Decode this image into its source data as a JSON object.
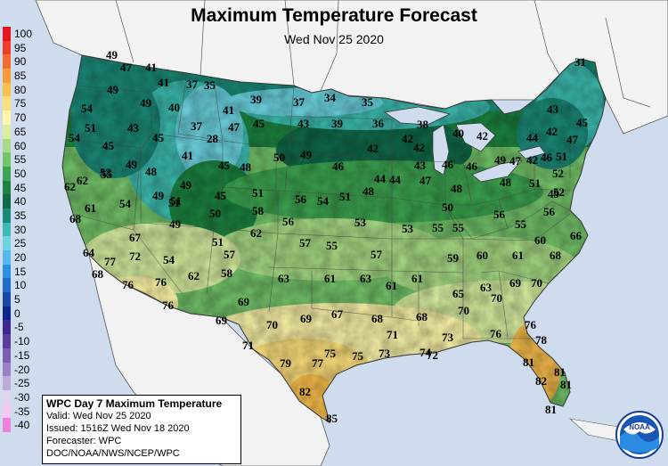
{
  "title": "Maximum Temperature Forecast",
  "subtitle": "Wed Nov 25 2020",
  "legend": [
    {
      "label": "100",
      "color": "#e8141c"
    },
    {
      "label": "95",
      "color": "#f03c28"
    },
    {
      "label": "90",
      "color": "#f56a2e"
    },
    {
      "label": "85",
      "color": "#f99a3a"
    },
    {
      "label": "80",
      "color": "#fbc04c"
    },
    {
      "label": "75",
      "color": "#fde07c"
    },
    {
      "label": "70",
      "color": "#fdf5a8"
    },
    {
      "label": "65",
      "color": "#d8efa0"
    },
    {
      "label": "60",
      "color": "#a8dc84"
    },
    {
      "label": "55",
      "color": "#74c46a"
    },
    {
      "label": "50",
      "color": "#3ca450"
    },
    {
      "label": "45",
      "color": "#1c8440"
    },
    {
      "label": "40",
      "color": "#106a48"
    },
    {
      "label": "35",
      "color": "#1a8a78"
    },
    {
      "label": "30",
      "color": "#3cbcb0"
    },
    {
      "label": "25",
      "color": "#6cd4e0"
    },
    {
      "label": "20",
      "color": "#56b8ec"
    },
    {
      "label": "15",
      "color": "#2c90e0"
    },
    {
      "label": "10",
      "color": "#1e6cc8"
    },
    {
      "label": "5",
      "color": "#1a48a8"
    },
    {
      "label": "0",
      "color": "#10248c"
    },
    {
      "label": "-5",
      "color": "#3c2890"
    },
    {
      "label": "-10",
      "color": "#5a3c9c"
    },
    {
      "label": "-15",
      "color": "#7a5cb0"
    },
    {
      "label": "-20",
      "color": "#9a80c4"
    },
    {
      "label": "-25",
      "color": "#bcaad8"
    },
    {
      "label": "-30",
      "color": "#e0d4ee"
    },
    {
      "label": "-35",
      "color": "#f4c8f0"
    },
    {
      "label": "-40",
      "color": "#f080e0"
    }
  ],
  "temperatures": [
    {
      "v": "49"
    },
    {
      "v": "47"
    },
    {
      "v": "41"
    },
    {
      "v": "49"
    },
    {
      "v": "41"
    },
    {
      "v": "37"
    },
    {
      "v": "35"
    },
    {
      "v": "39"
    },
    {
      "v": "37"
    },
    {
      "v": "34"
    },
    {
      "v": "35"
    },
    {
      "v": "31"
    },
    {
      "v": "54"
    },
    {
      "v": "49"
    },
    {
      "v": "40"
    },
    {
      "v": "41"
    },
    {
      "v": "45"
    },
    {
      "v": "43"
    },
    {
      "v": "39"
    },
    {
      "v": "36"
    },
    {
      "v": "38"
    },
    {
      "v": "40"
    },
    {
      "v": "43"
    },
    {
      "v": "54"
    },
    {
      "v": "51"
    },
    {
      "v": "43"
    },
    {
      "v": "45"
    },
    {
      "v": "37"
    },
    {
      "v": "28"
    },
    {
      "v": "47"
    },
    {
      "v": "42"
    },
    {
      "v": "42"
    },
    {
      "v": "44"
    },
    {
      "v": "42"
    },
    {
      "v": "45"
    },
    {
      "v": "45"
    },
    {
      "v": "41"
    },
    {
      "v": "42"
    },
    {
      "v": "42"
    },
    {
      "v": "47"
    },
    {
      "v": "49"
    },
    {
      "v": "48"
    },
    {
      "v": "45"
    },
    {
      "v": "48"
    },
    {
      "v": "50"
    },
    {
      "v": "49"
    },
    {
      "v": "46"
    },
    {
      "v": "44"
    },
    {
      "v": "43"
    },
    {
      "v": "46"
    },
    {
      "v": "46"
    },
    {
      "v": "49"
    },
    {
      "v": "47"
    },
    {
      "v": "42"
    },
    {
      "v": "46"
    },
    {
      "v": "51"
    },
    {
      "v": "53"
    },
    {
      "v": "55"
    },
    {
      "v": "44"
    },
    {
      "v": "47"
    },
    {
      "v": "48"
    },
    {
      "v": "52"
    },
    {
      "v": "62"
    },
    {
      "v": "62"
    },
    {
      "v": "49"
    },
    {
      "v": "49"
    },
    {
      "v": "51"
    },
    {
      "v": "45"
    },
    {
      "v": "51"
    },
    {
      "v": "56"
    },
    {
      "v": "54"
    },
    {
      "v": "51"
    },
    {
      "v": "48"
    },
    {
      "v": "48"
    },
    {
      "v": "51"
    },
    {
      "v": "49"
    },
    {
      "v": "52"
    },
    {
      "v": "61"
    },
    {
      "v": "54"
    },
    {
      "v": "51"
    },
    {
      "v": "50"
    },
    {
      "v": "58"
    },
    {
      "v": "50"
    },
    {
      "v": "56"
    },
    {
      "v": "68"
    },
    {
      "v": "49"
    },
    {
      "v": "56"
    },
    {
      "v": "53"
    },
    {
      "v": "53"
    },
    {
      "v": "55"
    },
    {
      "v": "55"
    },
    {
      "v": "55"
    },
    {
      "v": "56"
    },
    {
      "v": "67"
    },
    {
      "v": "51"
    },
    {
      "v": "62"
    },
    {
      "v": "57"
    },
    {
      "v": "55"
    },
    {
      "v": "60"
    },
    {
      "v": "66"
    },
    {
      "v": "64"
    },
    {
      "v": "77"
    },
    {
      "v": "72"
    },
    {
      "v": "54"
    },
    {
      "v": "57"
    },
    {
      "v": "57"
    },
    {
      "v": "59"
    },
    {
      "v": "60"
    },
    {
      "v": "61"
    },
    {
      "v": "68"
    },
    {
      "v": "68"
    },
    {
      "v": "76"
    },
    {
      "v": "76"
    },
    {
      "v": "62"
    },
    {
      "v": "58"
    },
    {
      "v": "63"
    },
    {
      "v": "61"
    },
    {
      "v": "63"
    },
    {
      "v": "61"
    },
    {
      "v": "61"
    },
    {
      "v": "65"
    },
    {
      "v": "63"
    },
    {
      "v": "69"
    },
    {
      "v": "70"
    },
    {
      "v": "76"
    },
    {
      "v": "69"
    },
    {
      "v": "70"
    },
    {
      "v": "70"
    },
    {
      "v": "69"
    },
    {
      "v": "70"
    },
    {
      "v": "69"
    },
    {
      "v": "67"
    },
    {
      "v": "68"
    },
    {
      "v": "68"
    },
    {
      "v": "76"
    },
    {
      "v": "71"
    },
    {
      "v": "71"
    },
    {
      "v": "73"
    },
    {
      "v": "76"
    },
    {
      "v": "78"
    },
    {
      "v": "79"
    },
    {
      "v": "77"
    },
    {
      "v": "75"
    },
    {
      "v": "75"
    },
    {
      "v": "73"
    },
    {
      "v": "74"
    },
    {
      "v": "72"
    },
    {
      "v": "81"
    },
    {
      "v": "81"
    },
    {
      "v": "82"
    },
    {
      "v": "82"
    },
    {
      "v": "81"
    },
    {
      "v": "85"
    },
    {
      "v": "81"
    }
  ],
  "infobox": {
    "heading": "WPC Day 7 Maximum Temperature",
    "valid": "Valid: Wed Nov 25 2020",
    "issued": "Issued: 1516Z Wed Nov 18 2020",
    "forecaster": "Forecaster: WPC",
    "source": "DOC/NOAA/NWS/NCEP/WPC"
  },
  "logo": {
    "text": "NOAA"
  }
}
